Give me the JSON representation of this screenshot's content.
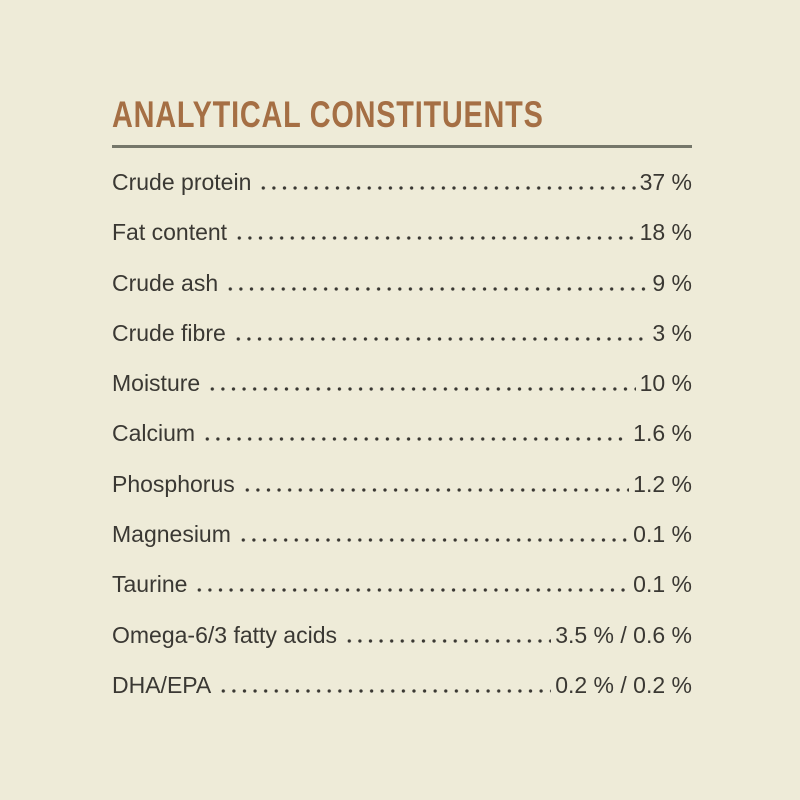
{
  "page": {
    "background_color": "#eeebd8"
  },
  "header": {
    "title": "ANALYTICAL CONSTITUENTS",
    "title_color": "#a56f44",
    "rule_color": "#75776a"
  },
  "constituents": {
    "text_color": "#3a3833",
    "rows": [
      {
        "label": "Crude protein",
        "value": "37 %"
      },
      {
        "label": "Fat content",
        "value": "18 %"
      },
      {
        "label": "Crude ash",
        "value": "9 %"
      },
      {
        "label": "Crude fibre",
        "value": "3 %"
      },
      {
        "label": "Moisture",
        "value": "10 %"
      },
      {
        "label": "Calcium",
        "value": "1.6 %"
      },
      {
        "label": "Phosphorus",
        "value": "1.2 %"
      },
      {
        "label": "Magnesium",
        "value": "0.1 %"
      },
      {
        "label": "Taurine",
        "value": "0.1 %"
      },
      {
        "label": "Omega-6/3 fatty acids",
        "value": "3.5 % / 0.6 %"
      },
      {
        "label": "DHA/EPA",
        "value": "0.2 % / 0.2 %"
      }
    ]
  }
}
